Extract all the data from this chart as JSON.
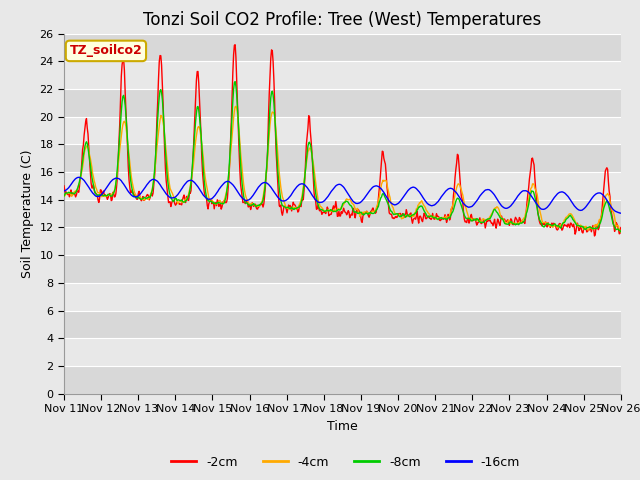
{
  "title": "Tonzi Soil CO2 Profile: Tree (West) Temperatures",
  "xlabel": "Time",
  "ylabel": "Soil Temperature (C)",
  "ylim": [
    0,
    26
  ],
  "yticks": [
    0,
    2,
    4,
    6,
    8,
    10,
    12,
    14,
    16,
    18,
    20,
    22,
    24,
    26
  ],
  "x_labels": [
    "Nov 11",
    "Nov 12",
    "Nov 13",
    "Nov 14",
    "Nov 15",
    "Nov 16",
    "Nov 17",
    "Nov 18",
    "Nov 19",
    "Nov 20",
    "Nov 21",
    "Nov 22",
    "Nov 23",
    "Nov 24",
    "Nov 25",
    "Nov 26"
  ],
  "legend_label": "TZ_soilco2",
  "series_labels": [
    "-2cm",
    "-4cm",
    "-8cm",
    "-16cm"
  ],
  "series_colors": [
    "#ff0000",
    "#ffaa00",
    "#00cc00",
    "#0000ff"
  ],
  "plot_bg_color": "#e8e8e8",
  "grid_color": "#ffffff",
  "title_fontsize": 12,
  "axis_fontsize": 9,
  "tick_fontsize": 8
}
